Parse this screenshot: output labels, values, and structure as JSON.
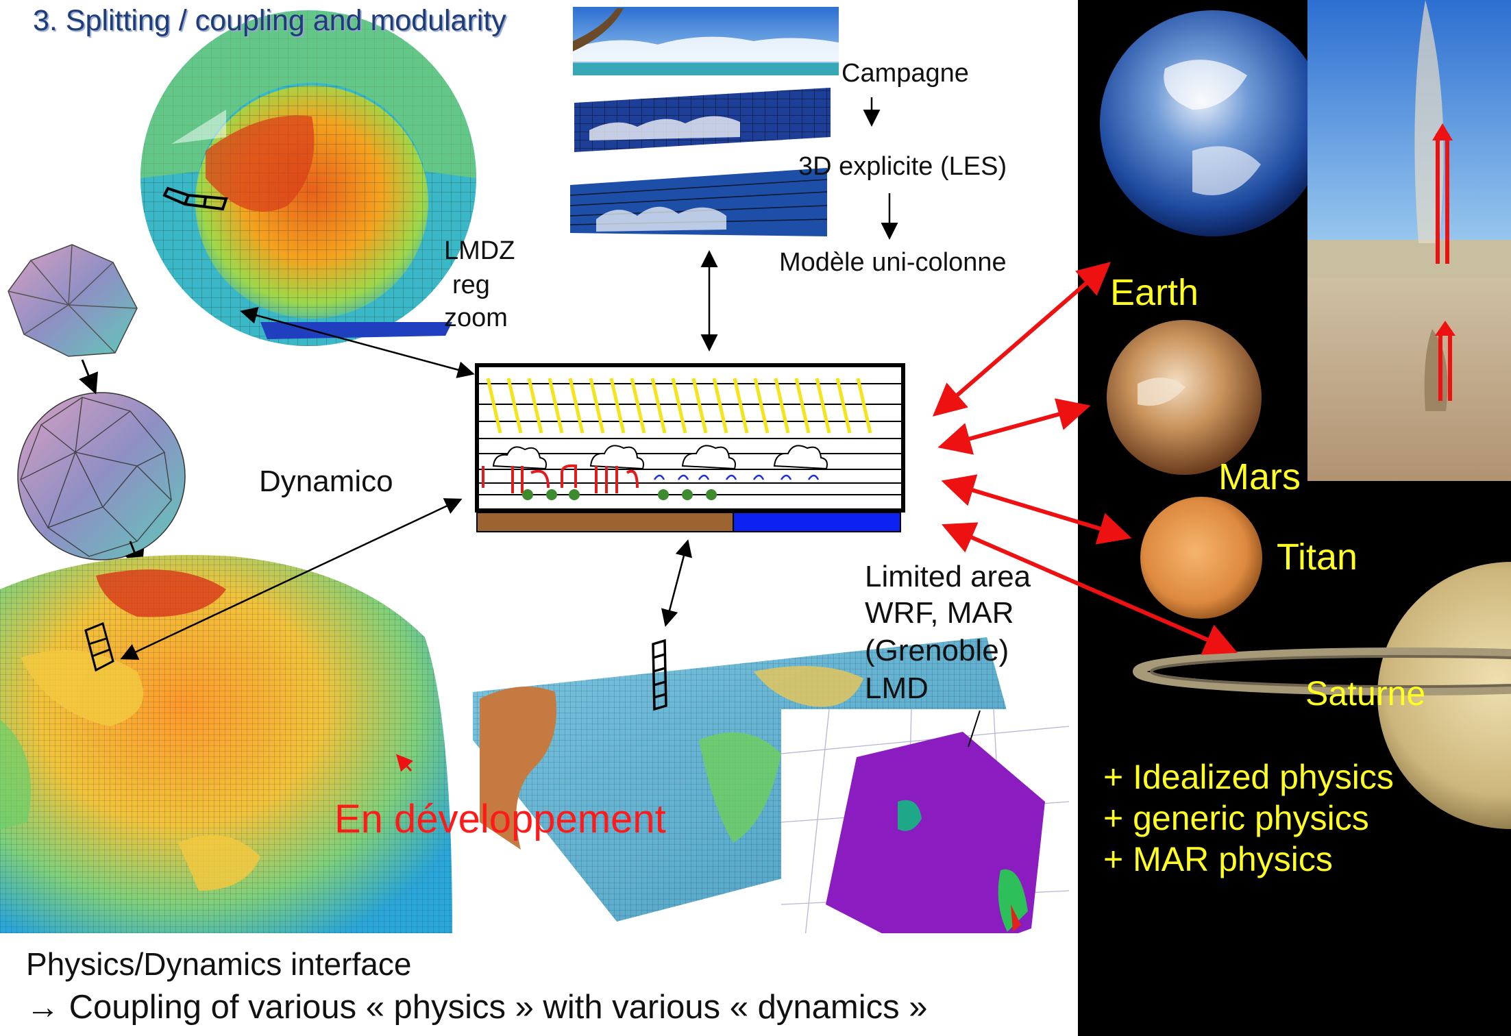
{
  "slide": {
    "title": "3. Splitting / coupling and modularity"
  },
  "les_chain": {
    "campagne": "Campagne",
    "les": "3D  explicite (LES)",
    "scm": "Modèle uni-colonne"
  },
  "lmdz": {
    "line1": "LMDZ",
    "line2": "reg",
    "line3": "zoom"
  },
  "dynamico": {
    "label": "Dynamico"
  },
  "limited_area": {
    "line1": "Limited area",
    "line2": "WRF, MAR",
    "line3": "(Grenoble)",
    "line4": "LMD"
  },
  "development": {
    "label": "En développement"
  },
  "planets": {
    "earth": "Earth",
    "mars": "Mars",
    "titan": "Titan",
    "saturne": "Saturne"
  },
  "physics_options": [
    "+ Idealized physics",
    "+ generic physics",
    "+ MAR physics"
  ],
  "interface": {
    "line1": "Physics/Dynamics interface",
    "line2": "→  Coupling of various « physics » with various « dynamics »"
  },
  "colors": {
    "title": "#1f3c7a",
    "planet_labels": "#ffff22",
    "arrows_red": "#ee1111",
    "development": "#ff1a1a",
    "panel_bg": "#000000"
  }
}
